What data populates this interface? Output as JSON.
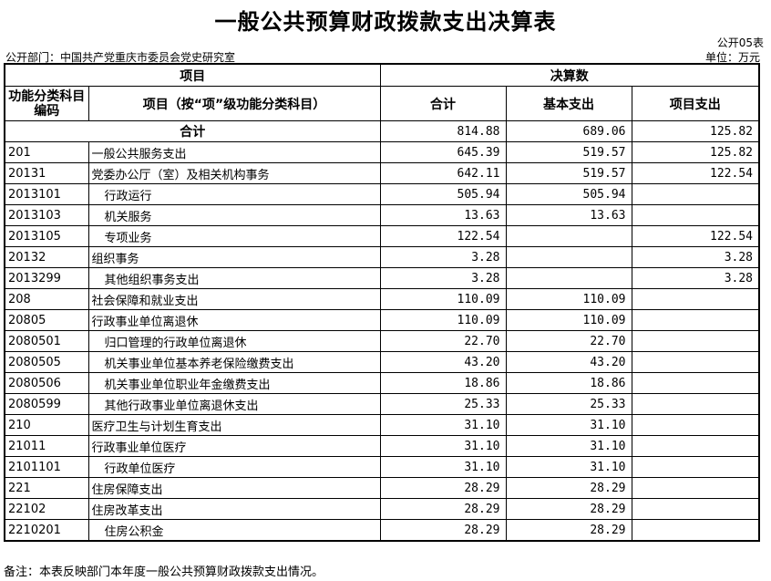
{
  "title": "一般公共预算财政拨款支出决算表",
  "table_no": "公开05表",
  "department": "公开部门：中国共产党重庆市委员会党史研究室",
  "unit": "单位：万元",
  "headers": {
    "item": "项目",
    "final": "决算数",
    "code": "功能分类科目编码",
    "name": "项目（按“项”级功能分类科目）",
    "total": "合计",
    "basic": "基本支出",
    "project": "项目支出"
  },
  "total_row": {
    "label": "合计",
    "total": "814.88",
    "basic": "689.06",
    "project": "125.82"
  },
  "rows": [
    {
      "code": "201",
      "name": "一般公共服务支出",
      "total": "645.39",
      "basic": "519.57",
      "project": "125.82",
      "indent": 0
    },
    {
      "code": "20131",
      "name": "党委办公厅（室）及相关机构事务",
      "total": "642.11",
      "basic": "519.57",
      "project": "122.54",
      "indent": 0
    },
    {
      "code": "2013101",
      "name": "行政运行",
      "total": "505.94",
      "basic": "505.94",
      "project": "",
      "indent": 1
    },
    {
      "code": "2013103",
      "name": "机关服务",
      "total": "13.63",
      "basic": "13.63",
      "project": "",
      "indent": 1
    },
    {
      "code": "2013105",
      "name": "专项业务",
      "total": "122.54",
      "basic": "",
      "project": "122.54",
      "indent": 1
    },
    {
      "code": "20132",
      "name": "组织事务",
      "total": "3.28",
      "basic": "",
      "project": "3.28",
      "indent": 0
    },
    {
      "code": "2013299",
      "name": "其他组织事务支出",
      "total": "3.28",
      "basic": "",
      "project": "3.28",
      "indent": 1
    },
    {
      "code": "208",
      "name": "社会保障和就业支出",
      "total": "110.09",
      "basic": "110.09",
      "project": "",
      "indent": 0
    },
    {
      "code": "20805",
      "name": "行政事业单位离退休",
      "total": "110.09",
      "basic": "110.09",
      "project": "",
      "indent": 0
    },
    {
      "code": "2080501",
      "name": "归口管理的行政单位离退休",
      "total": "22.70",
      "basic": "22.70",
      "project": "",
      "indent": 1
    },
    {
      "code": "2080505",
      "name": "机关事业单位基本养老保险缴费支出",
      "total": "43.20",
      "basic": "43.20",
      "project": "",
      "indent": 1
    },
    {
      "code": "2080506",
      "name": "机关事业单位职业年金缴费支出",
      "total": "18.86",
      "basic": "18.86",
      "project": "",
      "indent": 1
    },
    {
      "code": "2080599",
      "name": "其他行政事业单位离退休支出",
      "total": "25.33",
      "basic": "25.33",
      "project": "",
      "indent": 1
    },
    {
      "code": "210",
      "name": "医疗卫生与计划生育支出",
      "total": "31.10",
      "basic": "31.10",
      "project": "",
      "indent": 0
    },
    {
      "code": "21011",
      "name": "行政事业单位医疗",
      "total": "31.10",
      "basic": "31.10",
      "project": "",
      "indent": 0
    },
    {
      "code": "2101101",
      "name": "行政单位医疗",
      "total": "31.10",
      "basic": "31.10",
      "project": "",
      "indent": 1
    },
    {
      "code": "221",
      "name": "住房保障支出",
      "total": "28.29",
      "basic": "28.29",
      "project": "",
      "indent": 0
    },
    {
      "code": "22102",
      "name": "住房改革支出",
      "total": "28.29",
      "basic": "28.29",
      "project": "",
      "indent": 0
    },
    {
      "code": "2210201",
      "name": "住房公积金",
      "total": "28.29",
      "basic": "28.29",
      "project": "",
      "indent": 1
    }
  ],
  "note": "备注：本表反映部门本年度一般公共预算财政拨款支出情况。"
}
